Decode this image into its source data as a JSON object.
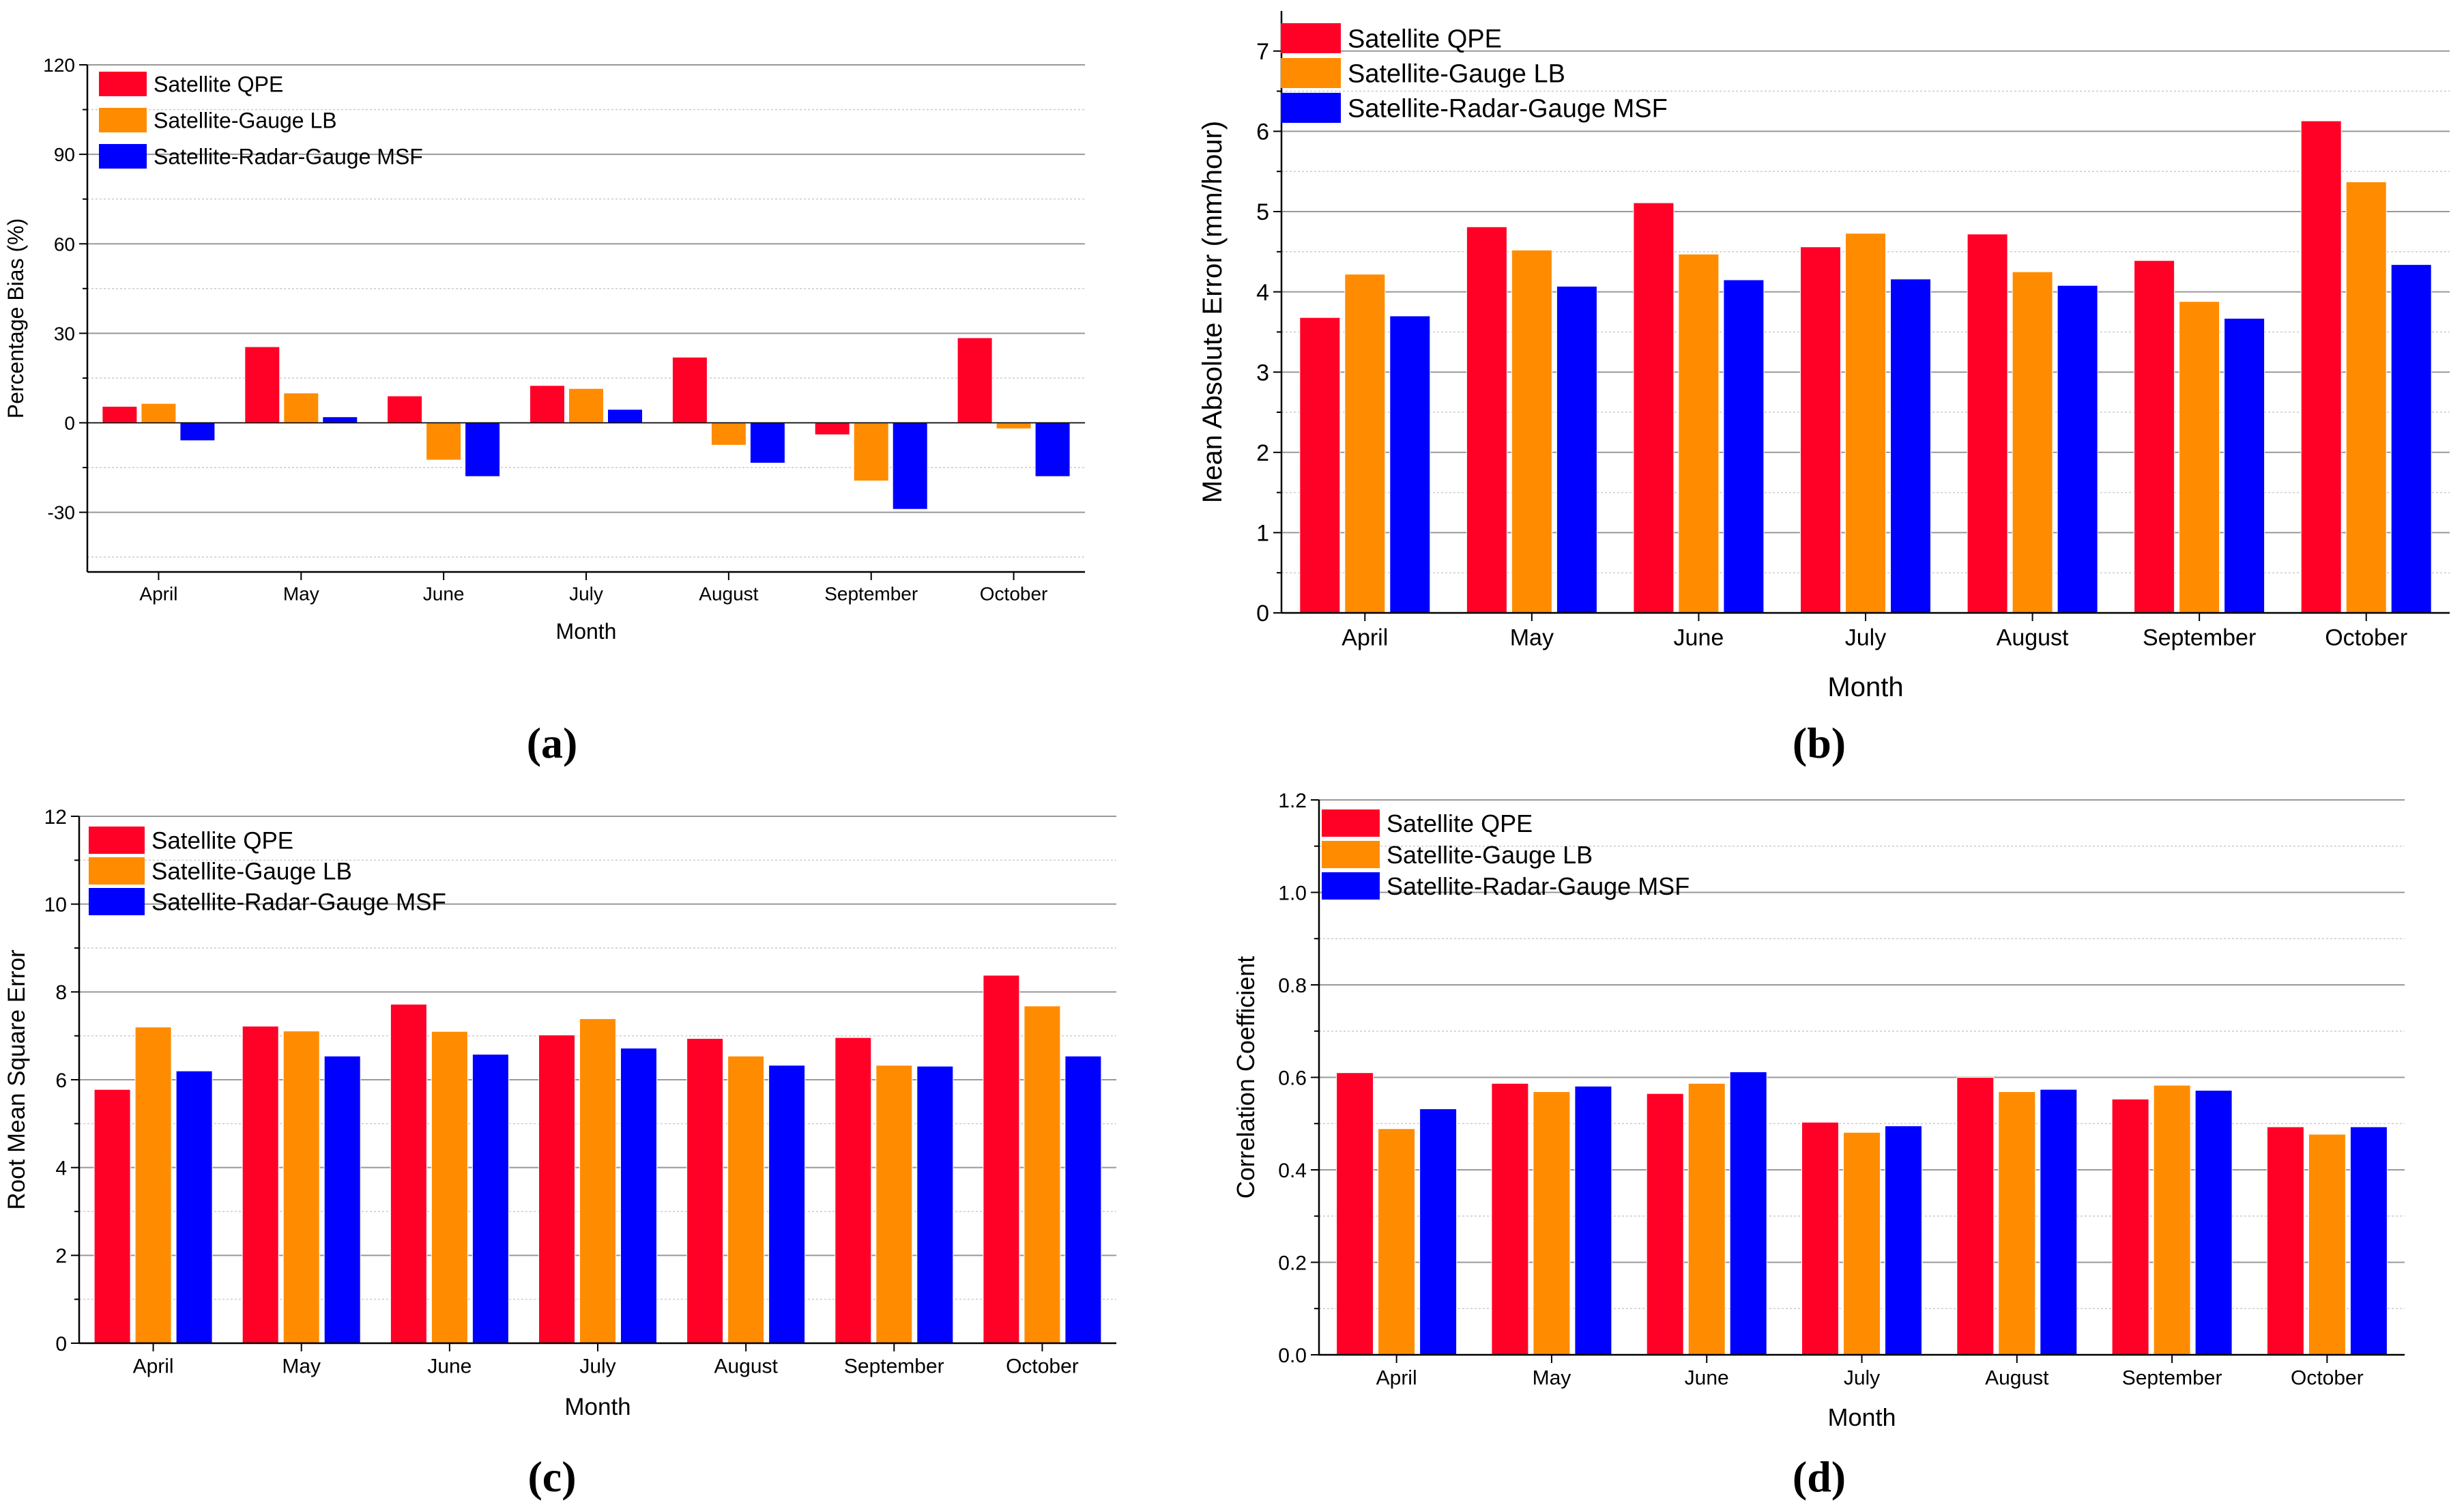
{
  "colors": {
    "qpe": "#ff0026",
    "lb": "#ff8c00",
    "msf": "#0000ff",
    "grid": "#999999",
    "axis": "#000000"
  },
  "chart_data": [
    {
      "type": "bar",
      "panel_label": "(a)",
      "title": "",
      "xlabel": "Month",
      "ylabel": "Percentage Bias (%)",
      "categories": [
        "April",
        "May",
        "June",
        "July",
        "August",
        "September",
        "October"
      ],
      "ylim": [
        -50,
        120
      ],
      "yticks": [
        -30,
        0,
        30,
        60,
        90,
        120
      ],
      "ytick_labels": [
        "-30",
        "0",
        "30",
        "60",
        "90",
        "120"
      ],
      "grid": true,
      "legend_position": "top-left",
      "series": [
        {
          "name": "Satellite QPE",
          "color_key": "qpe",
          "values": [
            5.5,
            25.5,
            9,
            12.5,
            22,
            -4,
            28.5
          ]
        },
        {
          "name": "Satellite-Gauge LB",
          "color_key": "lb",
          "values": [
            6.5,
            10,
            -12.5,
            11.5,
            -7.5,
            -19.5,
            -2
          ]
        },
        {
          "name": "Satellite-Radar-Gauge MSF",
          "color_key": "msf",
          "values": [
            -6,
            2,
            -18,
            4.5,
            -13.5,
            -29,
            -18
          ]
        }
      ]
    },
    {
      "type": "bar",
      "panel_label": "(b)",
      "title": "",
      "xlabel": "Month",
      "ylabel": "Mean Absolute Error (mm/hour)",
      "categories": [
        "April",
        "May",
        "June",
        "July",
        "August",
        "September",
        "October"
      ],
      "ylim": [
        0,
        7.5
      ],
      "yticks": [
        0,
        1,
        2,
        3,
        4,
        5,
        6,
        7
      ],
      "ytick_labels": [
        "0",
        "1",
        "2",
        "3",
        "4",
        "5",
        "6",
        "7"
      ],
      "grid": true,
      "legend_position": "top-left",
      "series": [
        {
          "name": "Satellite QPE",
          "color_key": "qpe",
          "values": [
            3.68,
            4.81,
            5.11,
            4.56,
            4.72,
            4.39,
            6.13
          ]
        },
        {
          "name": "Satellite-Gauge LB",
          "color_key": "lb",
          "values": [
            4.22,
            4.52,
            4.47,
            4.73,
            4.25,
            3.88,
            5.37
          ]
        },
        {
          "name": "Satellite-Radar-Gauge MSF",
          "color_key": "msf",
          "values": [
            3.7,
            4.07,
            4.15,
            4.16,
            4.08,
            3.67,
            4.34
          ]
        }
      ]
    },
    {
      "type": "bar",
      "panel_label": "(c)",
      "title": "",
      "xlabel": "Month",
      "ylabel": "Root Mean Square Error",
      "categories": [
        "April",
        "May",
        "June",
        "July",
        "August",
        "September",
        "October"
      ],
      "ylim": [
        0,
        12
      ],
      "yticks": [
        0,
        2,
        4,
        6,
        8,
        10,
        12
      ],
      "ytick_labels": [
        "0",
        "2",
        "4",
        "6",
        "8",
        "10",
        "12"
      ],
      "grid": true,
      "legend_position": "top-left",
      "series": [
        {
          "name": "Satellite QPE",
          "color_key": "qpe",
          "values": [
            5.78,
            7.22,
            7.72,
            7.02,
            6.94,
            6.96,
            8.38
          ]
        },
        {
          "name": "Satellite-Gauge LB",
          "color_key": "lb",
          "values": [
            7.2,
            7.11,
            7.1,
            7.39,
            6.54,
            6.33,
            7.68
          ]
        },
        {
          "name": "Satellite-Radar-Gauge MSF",
          "color_key": "msf",
          "values": [
            6.2,
            6.54,
            6.58,
            6.72,
            6.33,
            6.31,
            6.54
          ]
        }
      ]
    },
    {
      "type": "bar",
      "panel_label": "(d)",
      "title": "",
      "xlabel": "Month",
      "ylabel": "Correlation Coefficient",
      "categories": [
        "April",
        "May",
        "June",
        "July",
        "August",
        "September",
        "October"
      ],
      "ylim": [
        0,
        1.2
      ],
      "yticks": [
        0,
        0.2,
        0.4,
        0.6,
        0.8,
        1.0,
        1.2
      ],
      "ytick_labels": [
        "0.0",
        "0.2",
        "0.4",
        "0.6",
        "0.8",
        "1.0",
        "1.2"
      ],
      "grid": true,
      "legend_position": "top-left",
      "series": [
        {
          "name": "Satellite QPE",
          "color_key": "qpe",
          "values": [
            0.61,
            0.587,
            0.565,
            0.503,
            0.6,
            0.553,
            0.493
          ]
        },
        {
          "name": "Satellite-Gauge LB",
          "color_key": "lb",
          "values": [
            0.489,
            0.569,
            0.587,
            0.481,
            0.569,
            0.583,
            0.477
          ]
        },
        {
          "name": "Satellite-Radar-Gauge MSF",
          "color_key": "msf",
          "values": [
            0.532,
            0.581,
            0.612,
            0.495,
            0.574,
            0.572,
            0.493
          ]
        }
      ]
    }
  ]
}
